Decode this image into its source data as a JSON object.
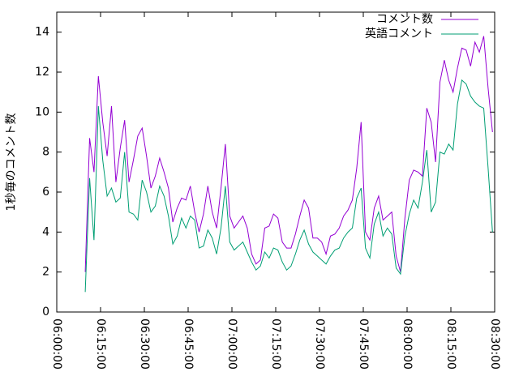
{
  "chart_data": {
    "type": "line",
    "y_label": "1秒毎のコメント数",
    "x": [
      "06:09:45",
      "06:11:15",
      "06:12:45",
      "06:14:15",
      "06:15:45",
      "06:17:15",
      "06:18:45",
      "06:20:15",
      "06:21:45",
      "06:23:15",
      "06:24:45",
      "06:26:15",
      "06:27:45",
      "06:29:15",
      "06:30:45",
      "06:32:15",
      "06:33:45",
      "06:35:15",
      "06:36:45",
      "06:38:15",
      "06:39:45",
      "06:41:15",
      "06:42:45",
      "06:44:15",
      "06:45:45",
      "06:47:15",
      "06:48:45",
      "06:50:15",
      "06:51:45",
      "06:53:15",
      "06:54:45",
      "06:56:15",
      "06:57:45",
      "06:59:15",
      "07:00:45",
      "07:02:15",
      "07:03:45",
      "07:05:15",
      "07:06:45",
      "07:08:15",
      "07:09:45",
      "07:11:15",
      "07:12:45",
      "07:14:15",
      "07:15:45",
      "07:17:15",
      "07:18:45",
      "07:20:15",
      "07:21:45",
      "07:23:15",
      "07:24:45",
      "07:26:15",
      "07:27:45",
      "07:29:15",
      "07:30:45",
      "07:32:15",
      "07:33:45",
      "07:35:15",
      "07:36:45",
      "07:38:15",
      "07:39:45",
      "07:41:15",
      "07:42:45",
      "07:44:15",
      "07:45:45",
      "07:47:15",
      "07:48:45",
      "07:50:15",
      "07:51:45",
      "07:53:15",
      "07:54:45",
      "07:56:15",
      "07:57:45",
      "07:59:15",
      "08:00:45",
      "08:02:15",
      "08:03:45",
      "08:05:15",
      "08:06:45",
      "08:08:15",
      "08:09:45",
      "08:11:15",
      "08:12:45",
      "08:14:15",
      "08:15:45",
      "08:17:15",
      "08:18:45",
      "08:20:15",
      "08:21:45",
      "08:23:15",
      "08:24:45",
      "08:26:15",
      "08:27:45",
      "08:29:15"
    ],
    "series": [
      {
        "name": "コメント数",
        "color": "#9400d3",
        "values": [
          2,
          8.7,
          7,
          11.8,
          9.5,
          7.8,
          10.3,
          6.5,
          8.2,
          9.6,
          6.5,
          7.6,
          8.8,
          9.2,
          7.8,
          6.2,
          6.8,
          7.7,
          7,
          6.2,
          4.5,
          5.2,
          5.7,
          5.6,
          6.3,
          5,
          4,
          4.9,
          6.3,
          5,
          4.2,
          6.2,
          8.4,
          4.8,
          4.2,
          4.5,
          4.8,
          4.2,
          2.9,
          2.4,
          2.6,
          4.2,
          4.3,
          4.9,
          4.7,
          3.5,
          3.2,
          3.2,
          3.9,
          4.8,
          5.6,
          5.2,
          3.7,
          3.7,
          3.5,
          2.9,
          3.8,
          3.9,
          4.2,
          4.8,
          5.1,
          5.6,
          7.2,
          9.5,
          4,
          3.6,
          5.2,
          5.8,
          4.6,
          4.8,
          5,
          2.8,
          2,
          4.7,
          6.6,
          7.1,
          7,
          6.8,
          10.2,
          9.5,
          7.5,
          11.5,
          12.6,
          11.6,
          11,
          12.2,
          13.2,
          13.1,
          12.3,
          13.5,
          13,
          13.8,
          11.2,
          9
        ]
      },
      {
        "name": "英語コメント",
        "color": "#009e73",
        "values": [
          1,
          6.7,
          3.6,
          10.3,
          7.6,
          5.8,
          6.2,
          5.5,
          5.7,
          8,
          5,
          4.9,
          4.6,
          6.6,
          6,
          5,
          5.3,
          6.3,
          5.8,
          4.8,
          3.4,
          3.8,
          4.7,
          4.2,
          4.8,
          4.6,
          3.2,
          3.3,
          4.1,
          3.7,
          2.9,
          4.2,
          6.3,
          3.5,
          3.1,
          3.3,
          3.5,
          3,
          2.5,
          2.1,
          2.3,
          3,
          2.7,
          3.2,
          3.1,
          2.5,
          2.1,
          2.3,
          2.9,
          3.6,
          4.1,
          3.4,
          3,
          2.8,
          2.6,
          2.4,
          2.8,
          3.1,
          3.2,
          3.7,
          4,
          4.2,
          5.7,
          6.2,
          3.2,
          2.7,
          4.4,
          5,
          3.8,
          4.2,
          3.9,
          2.2,
          1.9,
          3.8,
          4.9,
          5.6,
          5.2,
          6.5,
          8.1,
          5,
          5.5,
          8,
          7.9,
          8.4,
          8.1,
          10.4,
          11.6,
          11.4,
          10.8,
          10.5,
          10.3,
          10.2,
          7.2,
          4
        ]
      }
    ],
    "xlim": [
      "06:00:00",
      "08:30:00"
    ],
    "xticks": [
      "06:00:00",
      "06:15:00",
      "06:30:00",
      "06:45:00",
      "07:00:00",
      "07:15:00",
      "07:30:00",
      "07:45:00",
      "08:00:00",
      "08:15:00",
      "08:30:00"
    ],
    "ylim": [
      0,
      15
    ],
    "yticks": [
      0,
      2,
      4,
      6,
      8,
      10,
      12,
      14
    ],
    "legend": "top-right"
  }
}
